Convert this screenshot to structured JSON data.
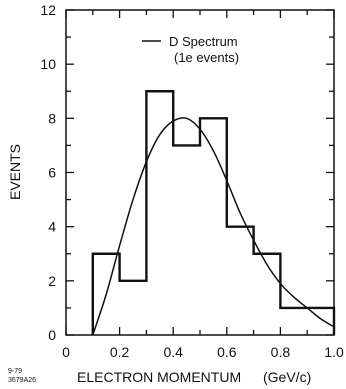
{
  "chart_data": {
    "type": "bar",
    "xlabel": "ELECTRON MOMENTUM",
    "xunit": "(GeV/c)",
    "ylabel": "EVENTS",
    "xlim": [
      0,
      1.0
    ],
    "ylim": [
      0,
      12
    ],
    "xticks": [
      "0",
      "0.2",
      "0.4",
      "0.6",
      "0.8",
      "1.0"
    ],
    "yticks": [
      "0",
      "2",
      "4",
      "6",
      "8",
      "10",
      "12"
    ],
    "grid": false,
    "legend": {
      "placement": "top-right",
      "line1": "D Spectrum",
      "line2": "(1e events)"
    },
    "histogram": {
      "bin_edges": [
        0.1,
        0.2,
        0.3,
        0.4,
        0.5,
        0.6,
        0.7,
        0.8,
        1.0
      ],
      "values": [
        3,
        2,
        9,
        7,
        8,
        4,
        3,
        1
      ]
    },
    "curve": {
      "name": "D Spectrum",
      "x": [
        0.1,
        0.15,
        0.2,
        0.25,
        0.3,
        0.35,
        0.4,
        0.45,
        0.5,
        0.55,
        0.6,
        0.65,
        0.7,
        0.75,
        0.8,
        0.85,
        0.9,
        0.95,
        1.0
      ],
      "y": [
        0,
        1.5,
        3.3,
        5.0,
        6.4,
        7.4,
        7.9,
        8.0,
        7.6,
        6.8,
        5.7,
        4.5,
        3.5,
        2.6,
        1.9,
        1.4,
        1.0,
        0.6,
        0.3
      ]
    },
    "annotation": {
      "line1": "9-79",
      "line2": "3679A26"
    }
  }
}
